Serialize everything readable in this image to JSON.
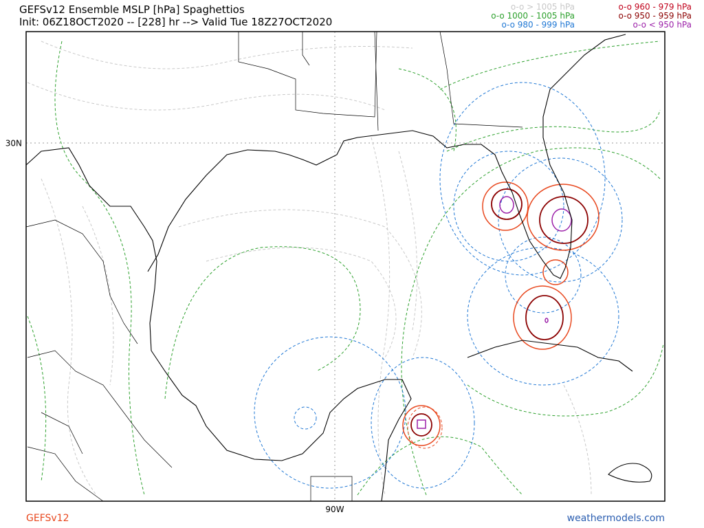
{
  "header": {
    "title": "GEFSv12 Ensemble MSLP [hPa] Spaghettios",
    "subtitle": "Init: 06Z18OCT2020 -- [228] hr --> Valid Tue 18Z27OCT2020"
  },
  "legend": [
    {
      "label": "o-o > 1005 hPa",
      "color": "#c8c8c8"
    },
    {
      "label": "o-o 1000 - 1005 hPa",
      "color": "#2ca02c"
    },
    {
      "label": "o-o 980 - 999 hPa",
      "color": "#1f77d4"
    },
    {
      "label": "o-o 960 - 979 hPa",
      "color": "#c0001a"
    },
    {
      "label": "o-o 950 - 959 hPa",
      "color": "#8b0000"
    },
    {
      "label": "o-o < 950 hPa",
      "color": "#9b1fa8"
    }
  ],
  "map": {
    "lat_label": "30N",
    "lon_label": "90W"
  },
  "footer": {
    "model": "GEFSv12",
    "site": "weathermodels.com"
  }
}
